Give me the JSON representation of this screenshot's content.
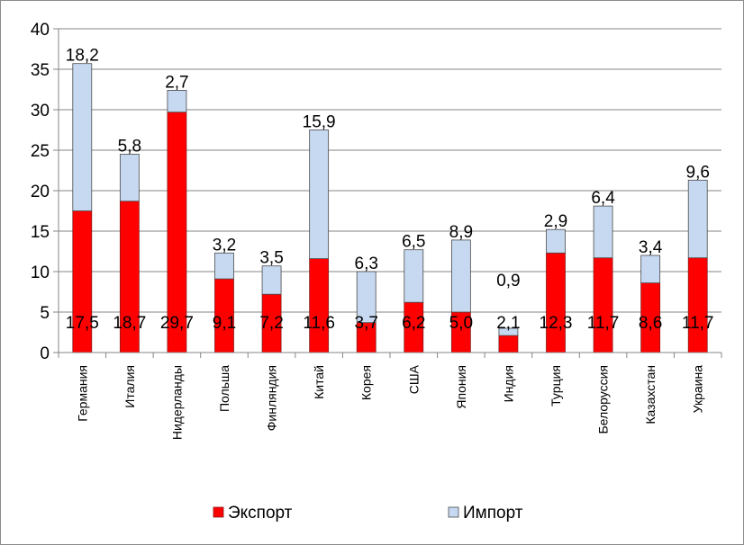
{
  "chart_data": {
    "type": "bar",
    "stacked": true,
    "categories": [
      "Германия",
      "Италия",
      "Нидерланды",
      "Польша",
      "Финляндия",
      "Китай",
      "Корея",
      "США",
      "Япония",
      "Индия",
      "Турция",
      "Белоруссия",
      "Казахстан",
      "Украина"
    ],
    "series": [
      {
        "name": "Экспорт",
        "color": "#ff0000",
        "values": [
          17.5,
          18.7,
          29.7,
          9.1,
          7.2,
          11.6,
          3.7,
          6.2,
          5.0,
          2.1,
          12.3,
          11.7,
          8.6,
          11.7
        ],
        "labels": [
          "17,5",
          "18,7",
          "29,7",
          "9,1",
          "7,2",
          "11,6",
          "3,7",
          "6,2",
          "5,0",
          "2,1",
          "12,3",
          "11,7",
          "8,6",
          "11,7"
        ]
      },
      {
        "name": "Импорт",
        "color": "#c6d9f1",
        "values": [
          18.2,
          5.8,
          2.7,
          3.2,
          3.5,
          15.9,
          6.3,
          6.5,
          8.9,
          0.9,
          2.9,
          6.4,
          3.4,
          9.6
        ],
        "labels": [
          "18,2",
          "5,8",
          "2,7",
          "3,2",
          "3,5",
          "15,9",
          "6,3",
          "6,5",
          "8,9",
          "0,9",
          "2,9",
          "6,4",
          "3,4",
          "9,6"
        ]
      }
    ],
    "yticks": [
      "0",
      "5",
      "10",
      "15",
      "20",
      "25",
      "30",
      "35",
      "40"
    ],
    "ylim": [
      0,
      40
    ],
    "grid": true,
    "legend": "bottom",
    "title": "",
    "xlabel": "",
    "ylabel": ""
  }
}
